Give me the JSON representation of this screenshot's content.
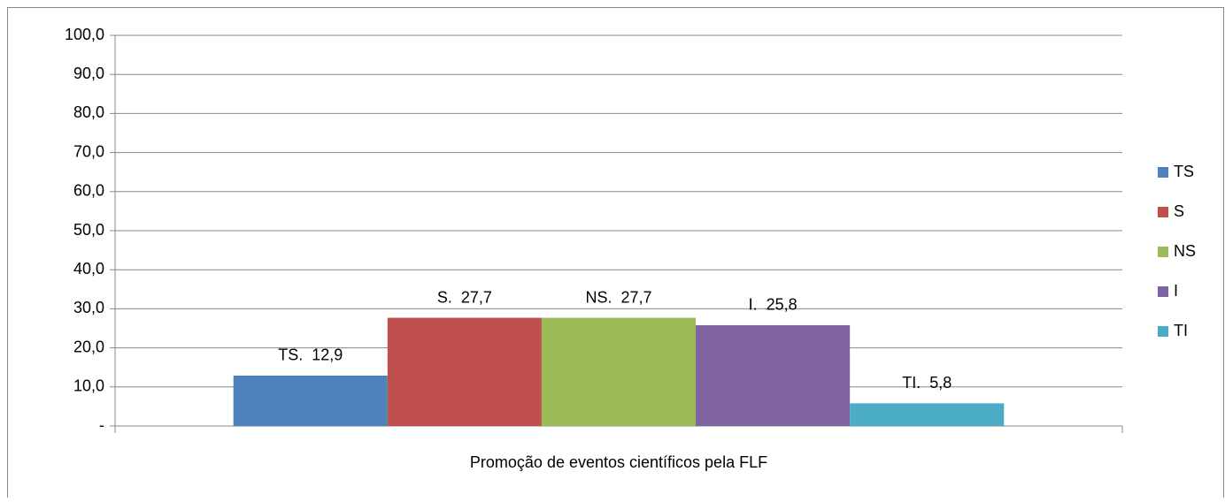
{
  "chart_data": {
    "type": "bar",
    "categories": [
      "Promoção de eventos científicos pela FLF"
    ],
    "series": [
      {
        "name": "TS",
        "color": "#4f81bd",
        "values": [
          12.9
        ],
        "value_labels": [
          "TS.  12,9"
        ]
      },
      {
        "name": "S",
        "color": "#c0504d",
        "values": [
          27.7
        ],
        "value_labels": [
          "S.  27,7"
        ]
      },
      {
        "name": "NS",
        "color": "#9bbb59",
        "values": [
          27.7
        ],
        "value_labels": [
          "NS.  27,7"
        ]
      },
      {
        "name": "I",
        "color": "#8064a2",
        "values": [
          25.8
        ],
        "value_labels": [
          "I.  25,8"
        ]
      },
      {
        "name": "TI",
        "color": "#4bacc6",
        "values": [
          5.8
        ],
        "value_labels": [
          "TI.  5,8"
        ]
      }
    ],
    "ylim": [
      0,
      100
    ],
    "yticks": [
      {
        "value": 0,
        "label": "-"
      },
      {
        "value": 10,
        "label": "10,0"
      },
      {
        "value": 20,
        "label": "20,0"
      },
      {
        "value": 30,
        "label": "30,0"
      },
      {
        "value": 40,
        "label": "40,0"
      },
      {
        "value": 50,
        "label": "50,0"
      },
      {
        "value": 60,
        "label": "60,0"
      },
      {
        "value": 70,
        "label": "70,0"
      },
      {
        "value": 80,
        "label": "80,0"
      },
      {
        "value": 90,
        "label": "90,0"
      },
      {
        "value": 100,
        "label": "100,0"
      }
    ],
    "grid": true,
    "legend": "right"
  }
}
